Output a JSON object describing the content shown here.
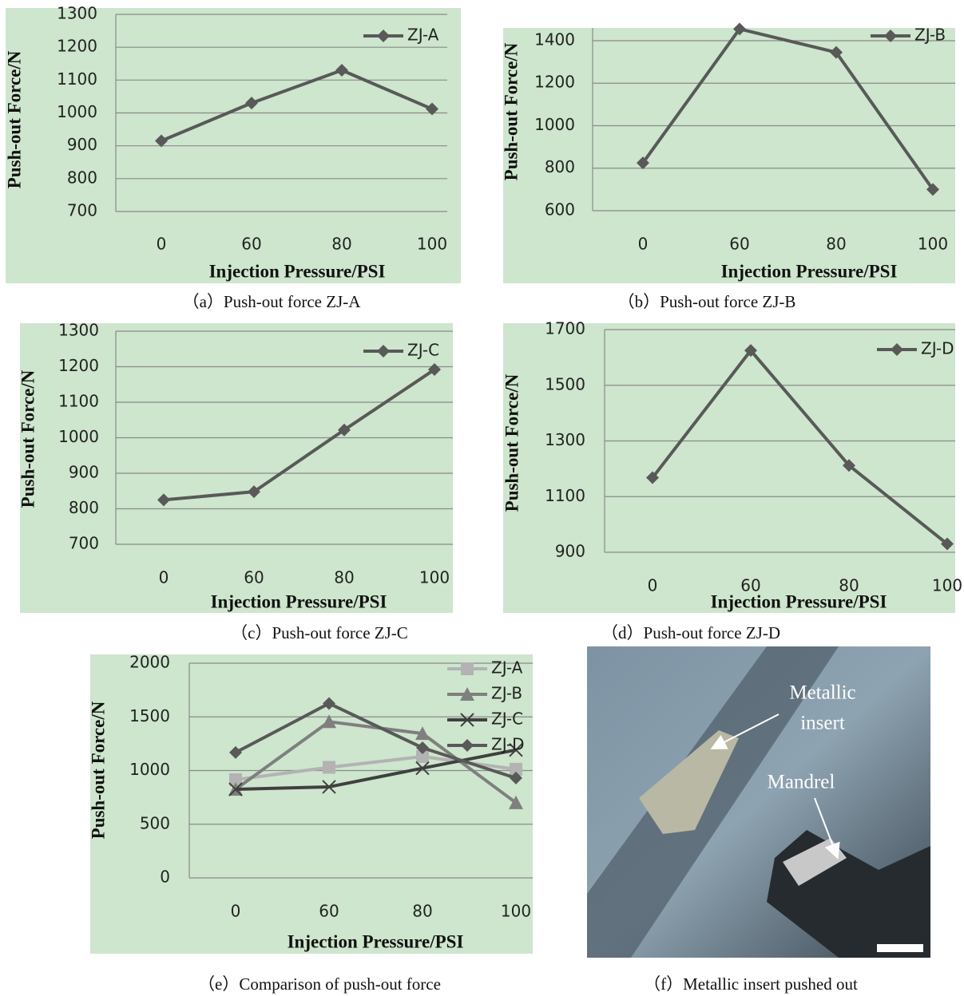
{
  "chart_data": [
    {
      "type": "line",
      "caption": "（a）Push-out force ZJ-A",
      "x_label": "Injection Pressure/PSI",
      "y_label": "Push-out Force/N",
      "categories": [
        "0",
        "60",
        "80",
        "100"
      ],
      "series": [
        {
          "name": "ZJ-A",
          "color": "#595959",
          "marker": "diamond",
          "values": [
            915,
            1030,
            1130,
            1012
          ]
        }
      ],
      "ylim": [
        700,
        1300
      ],
      "yticks": [
        700,
        800,
        900,
        1000,
        1100,
        1200,
        1300
      ],
      "grid": true,
      "legend": "upper right"
    },
    {
      "type": "line",
      "caption": "（b）Push-out force ZJ-B",
      "x_label": "Injection Pressure/PSI",
      "y_label": "Push-out Force/N",
      "categories": [
        "0",
        "60",
        "80",
        "100"
      ],
      "series": [
        {
          "name": "ZJ-B",
          "color": "#595959",
          "marker": "diamond",
          "values": [
            825,
            1455,
            1345,
            700
          ]
        }
      ],
      "ylim": [
        600,
        1460
      ],
      "yticks": [
        600,
        800,
        1000,
        1200,
        1400
      ],
      "grid": true,
      "legend": "upper right"
    },
    {
      "type": "line",
      "caption": "（c）Push-out force ZJ-C",
      "x_label": "Injection Pressure/PSI",
      "y_label": "Push-out Force/N",
      "categories": [
        "0",
        "60",
        "80",
        "100"
      ],
      "series": [
        {
          "name": "ZJ-C",
          "color": "#595959",
          "marker": "diamond",
          "values": [
            825,
            848,
            1022,
            1192
          ]
        }
      ],
      "ylim": [
        700,
        1300
      ],
      "yticks": [
        700,
        800,
        900,
        1000,
        1100,
        1200,
        1300
      ],
      "grid": true,
      "legend": "upper right"
    },
    {
      "type": "line",
      "caption": "（d）Push-out force ZJ-D",
      "x_label": "Injection Pressure/PSI",
      "y_label": "Push-out Force/N",
      "categories": [
        "0",
        "60",
        "80",
        "100"
      ],
      "series": [
        {
          "name": "ZJ-D",
          "color": "#595959",
          "marker": "diamond",
          "values": [
            1168,
            1625,
            1212,
            930
          ]
        }
      ],
      "ylim": [
        900,
        1700
      ],
      "yticks": [
        900,
        1100,
        1300,
        1500,
        1700
      ],
      "grid": true,
      "legend": "upper right"
    },
    {
      "type": "line",
      "caption": "（e）Comparison of push-out force",
      "x_label": "Injection Pressure/PSI",
      "y_label": "Push-out Force/N",
      "categories": [
        "0",
        "60",
        "80",
        "100"
      ],
      "series": [
        {
          "name": "ZJ-A",
          "color": "#b3b3b3",
          "marker": "square",
          "values": [
            915,
            1030,
            1130,
            1012
          ]
        },
        {
          "name": "ZJ-B",
          "color": "#7f7f7f",
          "marker": "triangle",
          "values": [
            825,
            1455,
            1345,
            700
          ]
        },
        {
          "name": "ZJ-C",
          "color": "#404040",
          "marker": "x",
          "values": [
            825,
            848,
            1022,
            1192
          ]
        },
        {
          "name": "ZJ-D",
          "color": "#595959",
          "marker": "diamond",
          "values": [
            1168,
            1625,
            1212,
            930
          ]
        }
      ],
      "ylim": [
        0,
        2000
      ],
      "yticks": [
        0,
        500,
        1000,
        1500,
        2000
      ],
      "grid": true,
      "legend": "upper right"
    }
  ],
  "photo": {
    "caption": "（f）Metallic insert pushed out",
    "insert_label": [
      "Metallic",
      "insert"
    ],
    "mandrel_label": "Mandrel"
  }
}
